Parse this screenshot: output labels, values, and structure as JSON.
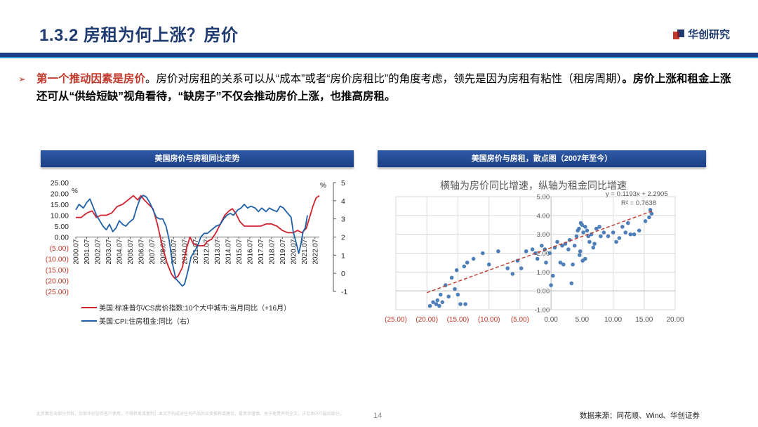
{
  "header": {
    "title": "1.3.2 房租为何上涨？房价",
    "logo_text": "华创研究",
    "colors": {
      "title": "#1f3b6f",
      "bar": "#1c3f88",
      "accent": "#2e9ad8",
      "emphasis": "#c0392b"
    }
  },
  "bullet": {
    "arrow": "➢",
    "lead": "第一个推动因素是房价",
    "part2": "。房价对房租的关系可以从“成本”或者“房价房租比”的角度考虑，领先是因为房租有粘性（租房周期）",
    "part3": "。房价上涨和租金上涨还可从“供给短缺”视角看待，“缺房子”不仅会推动房价上涨，也推高房租。"
  },
  "panel1": {
    "header": "美国房价与房租同比走势"
  },
  "panel2": {
    "header": "美国房价与房租，散点图（2007年至今）"
  },
  "chart_data": [
    {
      "type": "line",
      "title": "美国房价与房租同比走势",
      "x": [
        "2000.07",
        "2001.07",
        "2002.07",
        "2003.07",
        "2004.07",
        "2005.07",
        "2006.07",
        "2007.07",
        "2008.07",
        "2009.07",
        "2010.07",
        "2011.07",
        "2012.07",
        "2013.07",
        "2014.07",
        "2015.07",
        "2016.07",
        "2017.07",
        "2018.07",
        "2019.07",
        "2020.07",
        "2021.07",
        "2022.07"
      ],
      "yleft": {
        "label": "%",
        "ticks": [
          "25.00",
          "20.00",
          "15.00",
          "10.00",
          "5.00",
          "0.00",
          "(5.00)",
          "(10.00)",
          "(15.00)",
          "(20.00)",
          "(25.00)"
        ],
        "range": [
          -25,
          25
        ]
      },
      "yright": {
        "label": "%",
        "ticks": [
          "5",
          "4",
          "3",
          "2",
          "1",
          "0",
          "-1"
        ],
        "range": [
          -1,
          5
        ]
      },
      "series": [
        {
          "name": "美国:标准普尔/CS房价指数:10个大中城市:当月同比（+16月）",
          "axis": "left",
          "color": "#d0222d",
          "points": [
            [
              2000.5,
              9
            ],
            [
              2001.0,
              9
            ],
            [
              2001.5,
              11
            ],
            [
              2002.0,
              12
            ],
            [
              2002.4,
              9
            ],
            [
              2002.8,
              10
            ],
            [
              2003.3,
              10
            ],
            [
              2003.8,
              11
            ],
            [
              2004.3,
              14
            ],
            [
              2004.8,
              15
            ],
            [
              2005.3,
              17
            ],
            [
              2005.8,
              19
            ],
            [
              2006.2,
              17
            ],
            [
              2006.5,
              19
            ],
            [
              2006.8,
              17
            ],
            [
              2007.2,
              15
            ],
            [
              2007.6,
              13
            ],
            [
              2008.0,
              6
            ],
            [
              2008.5,
              -5
            ],
            [
              2008.9,
              -12
            ],
            [
              2009.3,
              -17
            ],
            [
              2009.6,
              -19
            ],
            [
              2009.9,
              -18
            ],
            [
              2010.3,
              -14
            ],
            [
              2010.7,
              -5
            ],
            [
              2011.0,
              0
            ],
            [
              2011.3,
              -3
            ],
            [
              2011.7,
              -4
            ],
            [
              2012.0,
              -4
            ],
            [
              2012.3,
              -4
            ],
            [
              2012.6,
              -2
            ],
            [
              2013.0,
              -1
            ],
            [
              2013.4,
              2
            ],
            [
              2013.8,
              6
            ],
            [
              2014.2,
              10
            ],
            [
              2014.6,
              12
            ],
            [
              2014.9,
              13
            ],
            [
              2015.2,
              11
            ],
            [
              2015.6,
              7
            ],
            [
              2016.0,
              5
            ],
            [
              2016.5,
              5
            ],
            [
              2017.0,
              5
            ],
            [
              2017.5,
              5
            ],
            [
              2018.0,
              6
            ],
            [
              2018.5,
              6
            ],
            [
              2019.0,
              5
            ],
            [
              2019.5,
              3
            ],
            [
              2020.0,
              2
            ],
            [
              2020.5,
              2
            ],
            [
              2020.9,
              3
            ],
            [
              2021.3,
              2
            ],
            [
              2021.7,
              4
            ],
            [
              2022.0,
              9
            ],
            [
              2022.3,
              14
            ],
            [
              2022.6,
              18
            ],
            [
              2022.9,
              19
            ]
          ]
        },
        {
          "name": "美国:CPI:住房租金:同比（右）",
          "axis": "right",
          "color": "#1f5fa8",
          "points": [
            [
              2000.5,
              3.5
            ],
            [
              2000.8,
              3.8
            ],
            [
              2001.2,
              3.6
            ],
            [
              2001.5,
              3.9
            ],
            [
              2001.8,
              4.1
            ],
            [
              2002.0,
              3.8
            ],
            [
              2002.4,
              3.2
            ],
            [
              2002.7,
              2.9
            ],
            [
              2003.0,
              2.6
            ],
            [
              2003.3,
              2.4
            ],
            [
              2003.6,
              2.7
            ],
            [
              2003.9,
              2.3
            ],
            [
              2004.2,
              2.5
            ],
            [
              2004.5,
              2.9
            ],
            [
              2004.8,
              2.7
            ],
            [
              2005.1,
              2.6
            ],
            [
              2005.4,
              2.8
            ],
            [
              2005.8,
              3.0
            ],
            [
              2006.1,
              3.6
            ],
            [
              2006.4,
              4.1
            ],
            [
              2006.7,
              4.3
            ],
            [
              2007.0,
              4.2
            ],
            [
              2007.3,
              3.9
            ],
            [
              2007.6,
              3.5
            ],
            [
              2007.9,
              3.1
            ],
            [
              2008.2,
              3.0
            ],
            [
              2008.5,
              3.0
            ],
            [
              2008.8,
              2.6
            ],
            [
              2009.1,
              1.8
            ],
            [
              2009.4,
              0.5
            ],
            [
              2009.7,
              -0.3
            ],
            [
              2010.0,
              -0.5
            ],
            [
              2010.3,
              -0.7
            ],
            [
              2010.5,
              -0.6
            ],
            [
              2010.8,
              0.1
            ],
            [
              2011.1,
              0.9
            ],
            [
              2011.4,
              1.2
            ],
            [
              2011.7,
              1.5
            ],
            [
              2012.0,
              2.0
            ],
            [
              2012.3,
              2.2
            ],
            [
              2012.6,
              2.2
            ],
            [
              2013.0,
              2.4
            ],
            [
              2013.4,
              2.6
            ],
            [
              2013.8,
              2.7
            ],
            [
              2014.1,
              3.0
            ],
            [
              2014.4,
              3.2
            ],
            [
              2014.7,
              3.3
            ],
            [
              2015.0,
              3.2
            ],
            [
              2015.4,
              3.5
            ],
            [
              2015.7,
              3.6
            ],
            [
              2016.0,
              3.8
            ],
            [
              2016.3,
              3.6
            ],
            [
              2016.6,
              3.7
            ],
            [
              2017.0,
              3.6
            ],
            [
              2017.3,
              3.4
            ],
            [
              2017.6,
              3.6
            ],
            [
              2018.0,
              3.4
            ],
            [
              2018.3,
              3.6
            ],
            [
              2018.6,
              3.5
            ],
            [
              2019.0,
              3.4
            ],
            [
              2019.3,
              3.7
            ],
            [
              2019.6,
              3.6
            ],
            [
              2020.0,
              3.3
            ],
            [
              2020.3,
              3.1
            ],
            [
              2020.5,
              2.3
            ],
            [
              2020.8,
              1.6
            ],
            [
              2021.0,
              1.1
            ],
            [
              2021.2,
              1.6
            ],
            [
              2021.4,
              2.3
            ],
            [
              2021.6,
              2.5
            ],
            [
              2021.8,
              3.2
            ]
          ]
        }
      ],
      "legend_placement": "bottom"
    },
    {
      "type": "scatter",
      "title": "横轴为房价同比增速，纵轴为租金同比增速",
      "xticks": [
        "(25.00)",
        "(20.00)",
        "(15.00)",
        "(10.00)",
        "(5.00)",
        "0.00",
        "5.00",
        "10.00",
        "15.00",
        "20.00"
      ],
      "yticks": [
        "5.00",
        "4.00",
        "3.00",
        "2.00",
        "1.00",
        "0.00",
        "-1.00"
      ],
      "xlim": [
        -25,
        20
      ],
      "ylim": [
        -1,
        5
      ],
      "grid": true,
      "trendline": {
        "equation": "y = 0.1193x + 2.2905",
        "r2": "R² = 0.7638",
        "slope": 0.1193,
        "intercept": 2.2905,
        "color": "#c0392b",
        "style": "dashed"
      },
      "color": "#4f7fb8",
      "points": [
        [
          -19.5,
          -0.8
        ],
        [
          -19.0,
          -0.6
        ],
        [
          -18.5,
          -0.7
        ],
        [
          -18.0,
          -0.8
        ],
        [
          -18.3,
          -0.5
        ],
        [
          -17.5,
          -0.6
        ],
        [
          -17.8,
          -0.2
        ],
        [
          -16.5,
          -0.3
        ],
        [
          -15.5,
          0.1
        ],
        [
          -15.0,
          -0.2
        ],
        [
          -14.6,
          -0.7
        ],
        [
          -13.8,
          -0.7
        ],
        [
          -17.0,
          0.3
        ],
        [
          -16.0,
          0.7
        ],
        [
          -15.2,
          1.1
        ],
        [
          -14.0,
          1.3
        ],
        [
          -13.5,
          1.5
        ],
        [
          -12.5,
          1.7
        ],
        [
          -11.0,
          2.0
        ],
        [
          -10.0,
          1.4
        ],
        [
          -8.5,
          2.1
        ],
        [
          -7.0,
          1.2
        ],
        [
          -6.2,
          0.9
        ],
        [
          -5.4,
          1.6
        ],
        [
          -4.8,
          1.2
        ],
        [
          -4.0,
          2.1
        ],
        [
          -3.0,
          2.2
        ],
        [
          -2.2,
          1.7
        ],
        [
          -1.5,
          2.4
        ],
        [
          -0.8,
          1.5
        ],
        [
          -0.2,
          2.0
        ],
        [
          0.0,
          0.3
        ],
        [
          0.6,
          2.3
        ],
        [
          1.0,
          2.6
        ],
        [
          1.5,
          1.5
        ],
        [
          1.8,
          2.4
        ],
        [
          2.3,
          2.5
        ],
        [
          2.8,
          2.2
        ],
        [
          3.0,
          2.7
        ],
        [
          3.5,
          1.4
        ],
        [
          3.8,
          2.4
        ],
        [
          4.1,
          2.9
        ],
        [
          4.3,
          3.2
        ],
        [
          4.5,
          3.3
        ],
        [
          4.8,
          3.6
        ],
        [
          5.0,
          3.5
        ],
        [
          5.2,
          3.1
        ],
        [
          5.5,
          3.4
        ],
        [
          5.8,
          3.2
        ],
        [
          6.0,
          2.9
        ],
        [
          4.6,
          1.9
        ],
        [
          5.1,
          1.6
        ],
        [
          5.5,
          1.7
        ],
        [
          6.2,
          2.6
        ],
        [
          6.5,
          3.0
        ],
        [
          7.0,
          2.5
        ],
        [
          7.3,
          3.3
        ],
        [
          7.8,
          3.4
        ],
        [
          8.5,
          3.1
        ],
        [
          9.2,
          2.9
        ],
        [
          10.0,
          3.1
        ],
        [
          10.5,
          2.6
        ],
        [
          11.0,
          2.8
        ],
        [
          11.5,
          3.4
        ],
        [
          12.0,
          3.1
        ],
        [
          12.4,
          3.6
        ],
        [
          12.8,
          3.0
        ],
        [
          13.4,
          3.0
        ],
        [
          14.2,
          3.2
        ],
        [
          15.2,
          3.7
        ],
        [
          15.8,
          3.9
        ],
        [
          16.2,
          4.1
        ],
        [
          16.0,
          4.3
        ],
        [
          -2.5,
          2.0
        ],
        [
          -1.0,
          2.2
        ],
        [
          0.3,
          0.8
        ],
        [
          2.0,
          1.4
        ],
        [
          3.3,
          0.4
        ],
        [
          4.7,
          2.1
        ],
        [
          6.8,
          2.3
        ],
        [
          8.0,
          2.9
        ]
      ],
      "legend_placement": "none"
    }
  ],
  "footer": {
    "disclaimer": "此页面包含部分资料，仅供华创证券客户使用，不得转发或复制；本文不构成对任何产品的买卖推荐或建议，投资须谨慎。关于免责声明全文，详见本PPT最后部分。",
    "page": "14",
    "source": "数据来源：同花顺、Wind、华创证券"
  }
}
